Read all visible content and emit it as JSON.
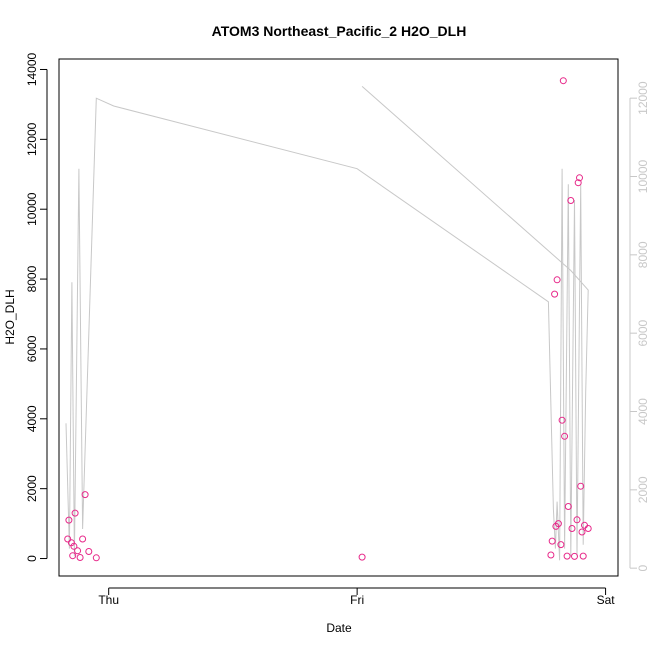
{
  "chart_data": {
    "type": "scatter",
    "title": "ATOM3 Northeast_Pacific_2 H2O_DLH",
    "xlabel": "Date",
    "ylabel": "H2O_DLH",
    "x_tick_labels": [
      "Thu",
      "Fri",
      "Sat"
    ],
    "xlim": [
      -0.2,
      2.05
    ],
    "ylim": [
      -500,
      14300
    ],
    "y_ticks": [
      0,
      2000,
      4000,
      6000,
      8000,
      10000,
      12000,
      14000
    ],
    "y2lim": [
      -200,
      13000
    ],
    "y2_ticks": [
      0,
      2000,
      4000,
      6000,
      8000,
      10000,
      12000
    ],
    "grid": false,
    "point_color": "#e7298a",
    "line_color": "#c8c8c8",
    "series": [
      {
        "kind": "points",
        "axis": "left",
        "points": [
          {
            "x": -0.165,
            "y": 560
          },
          {
            "x": -0.16,
            "y": 1100
          },
          {
            "x": -0.15,
            "y": 450
          },
          {
            "x": -0.145,
            "y": 80
          },
          {
            "x": -0.14,
            "y": 350
          },
          {
            "x": -0.135,
            "y": 1300
          },
          {
            "x": -0.125,
            "y": 220
          },
          {
            "x": -0.115,
            "y": 30
          },
          {
            "x": -0.105,
            "y": 560
          },
          {
            "x": -0.095,
            "y": 1830
          },
          {
            "x": -0.08,
            "y": 200
          },
          {
            "x": -0.05,
            "y": 20
          },
          {
            "x": 1.02,
            "y": 40
          },
          {
            "x": 1.78,
            "y": 100
          },
          {
            "x": 1.785,
            "y": 500
          },
          {
            "x": 1.795,
            "y": 7570
          },
          {
            "x": 1.8,
            "y": 920
          },
          {
            "x": 1.805,
            "y": 7980
          },
          {
            "x": 1.81,
            "y": 1000
          },
          {
            "x": 1.82,
            "y": 400
          },
          {
            "x": 1.825,
            "y": 3960
          },
          {
            "x": 1.83,
            "y": 13680
          },
          {
            "x": 1.835,
            "y": 3500
          },
          {
            "x": 1.845,
            "y": 70
          },
          {
            "x": 1.85,
            "y": 1490
          },
          {
            "x": 1.86,
            "y": 10250
          },
          {
            "x": 1.865,
            "y": 860
          },
          {
            "x": 1.875,
            "y": 60
          },
          {
            "x": 1.885,
            "y": 1110
          },
          {
            "x": 1.89,
            "y": 10760
          },
          {
            "x": 1.895,
            "y": 10900
          },
          {
            "x": 1.9,
            "y": 2070
          },
          {
            "x": 1.905,
            "y": 760
          },
          {
            "x": 1.91,
            "y": 70
          },
          {
            "x": 1.915,
            "y": 950
          },
          {
            "x": 1.93,
            "y": 860
          }
        ]
      },
      {
        "kind": "line",
        "axis": "right",
        "points": [
          {
            "x": -0.172,
            "y": 3700
          },
          {
            "x": -0.158,
            "y": 500
          },
          {
            "x": -0.148,
            "y": 7300
          },
          {
            "x": -0.138,
            "y": 300
          },
          {
            "x": -0.12,
            "y": 10200
          },
          {
            "x": -0.105,
            "y": 1000
          },
          {
            "x": -0.05,
            "y": 12000
          },
          {
            "x": 0.02,
            "y": 11800
          },
          {
            "x": 1.0,
            "y": 10200
          },
          {
            "x": 1.77,
            "y": 6800
          },
          {
            "x": 1.79,
            "y": 1500
          },
          {
            "x": 1.798,
            "y": 500
          },
          {
            "x": 1.805,
            "y": 1700
          },
          {
            "x": 1.815,
            "y": 200
          },
          {
            "x": 1.825,
            "y": 10200
          },
          {
            "x": 1.835,
            "y": 500
          },
          {
            "x": 1.85,
            "y": 9800
          },
          {
            "x": 1.86,
            "y": 300
          },
          {
            "x": 1.875,
            "y": 9400
          },
          {
            "x": 1.885,
            "y": 300
          },
          {
            "x": 1.9,
            "y": 9800
          },
          {
            "x": 1.91,
            "y": 600
          },
          {
            "x": 1.92,
            "y": 4500
          },
          {
            "x": 1.93,
            "y": 7100
          },
          {
            "x": 1.86,
            "y": 7600
          },
          {
            "x": 1.02,
            "y": 12300
          }
        ]
      }
    ]
  }
}
